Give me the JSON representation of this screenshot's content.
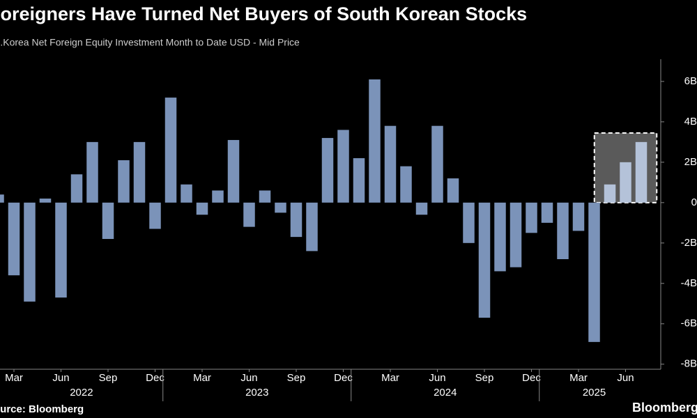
{
  "chart_data": {
    "type": "bar",
    "title": "Foreigners Have Turned Net Buyers of South Korean Stocks",
    "subtitle": "S.Korea Net Foreign Equity Investment Month to Date USD - Mid Price",
    "source": "Source: Bloomberg",
    "brand": "Bloomberg",
    "categories": [
      null,
      "Mar",
      null,
      null,
      "Jun",
      null,
      null,
      "Sep",
      null,
      null,
      "Dec",
      null,
      null,
      "Mar",
      null,
      null,
      "Jun",
      null,
      null,
      "Sep",
      null,
      null,
      "Dec",
      null,
      null,
      "Mar",
      null,
      null,
      "Jun",
      null,
      null,
      "Sep",
      null,
      null,
      "Dec",
      null,
      null,
      "Mar",
      null,
      null,
      "Jun",
      null
    ],
    "year_groups": [
      {
        "label": "2022",
        "months": 11
      },
      {
        "label": "2023",
        "months": 12
      },
      {
        "label": "2024",
        "months": 12
      },
      {
        "label": "2025",
        "months": 7
      }
    ],
    "values": [
      0.4,
      -3.6,
      -4.9,
      0.2,
      -4.7,
      1.4,
      3.0,
      -1.8,
      2.1,
      3.0,
      -1.3,
      5.2,
      0.9,
      -0.6,
      0.6,
      3.1,
      -1.2,
      0.6,
      -0.5,
      -1.7,
      -2.4,
      3.2,
      3.6,
      2.2,
      6.1,
      3.8,
      1.8,
      -0.6,
      3.8,
      1.2,
      -2.0,
      -5.7,
      -3.4,
      -3.2,
      -1.5,
      -1.0,
      -2.8,
      -1.4,
      -6.9,
      0.9,
      2.0,
      3.0
    ],
    "color": "#7b93b9",
    "highlight": {
      "start": 39,
      "color": "#b4c2d9"
    },
    "ylim": [
      -8.25,
      7.1
    ],
    "yticks": [
      {
        "value": -8,
        "label": "-8B"
      },
      {
        "value": -6,
        "label": "-6B"
      },
      {
        "value": -4,
        "label": "-4B"
      },
      {
        "value": -2,
        "label": "-2B"
      },
      0,
      {
        "value": 2,
        "label": "2B"
      },
      {
        "value": 4,
        "label": "4B"
      },
      {
        "value": 6,
        "label": "6B"
      }
    ],
    "grid": false
  }
}
